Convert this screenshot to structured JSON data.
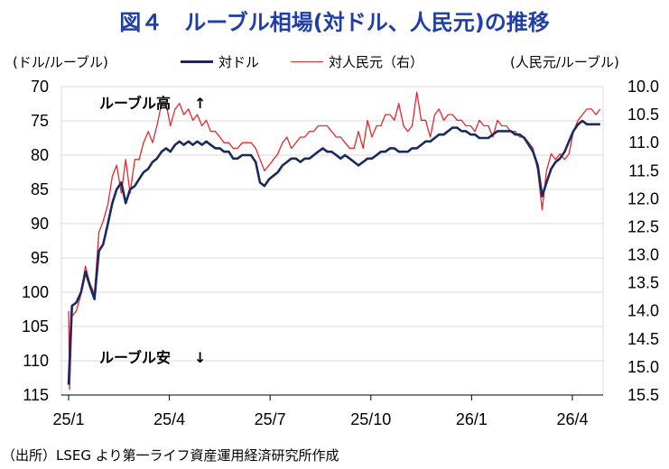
{
  "title": "図４　ルーブル相場(対ドル、人民元)の推移",
  "source": "（出所）LSEG より第一ライフ資産運用経済研究所作成",
  "chart_data": {
    "type": "line",
    "left_unit": "(ドル/ルーブル)",
    "right_unit": "(人民元/ルーブル)",
    "x_tick_labels": [
      "25/1",
      "25/4",
      "25/7",
      "25/10",
      "26/1",
      "26/4"
    ],
    "y_left": {
      "min": 70,
      "max": 115,
      "inverted": true,
      "ticks": [
        70,
        75,
        80,
        85,
        90,
        95,
        100,
        105,
        110,
        115
      ]
    },
    "y_right": {
      "min": 10.0,
      "max": 15.5,
      "inverted": true,
      "ticks": [
        "10.0",
        "10.5",
        "11.0",
        "11.5",
        "12.0",
        "12.5",
        "13.0",
        "13.5",
        "14.0",
        "14.5",
        "15.0",
        "15.5"
      ]
    },
    "annotations": {
      "high": "ルーブル高",
      "low": "ルーブル安"
    },
    "gridlines": "horizontal",
    "legend_position": "top",
    "series": [
      {
        "name": "対ドル",
        "axis": "left",
        "color": "#1a2a5e",
        "t": [
          0,
          0.03,
          0.1,
          0.23,
          0.37,
          0.5,
          0.63,
          0.77,
          0.9,
          1.03,
          1.17,
          1.3,
          1.43,
          1.57,
          1.7,
          1.83,
          1.97,
          2.1,
          2.23,
          2.37,
          2.5,
          2.63,
          2.77,
          2.9,
          3.03,
          3.17,
          3.3,
          3.43,
          3.57,
          3.7,
          3.83,
          3.97,
          4.1,
          4.23,
          4.37,
          4.5,
          4.63,
          4.77,
          4.9,
          5.03,
          5.17,
          5.3,
          5.43,
          5.57,
          5.7,
          5.83,
          5.97,
          6.1,
          6.23,
          6.37,
          6.5,
          6.63,
          6.77,
          6.9,
          7.03,
          7.17,
          7.3,
          7.43,
          7.57,
          7.7,
          7.83,
          7.97,
          8.1,
          8.23,
          8.37,
          8.5,
          8.63,
          8.77,
          8.9,
          9.03,
          9.17,
          9.3,
          9.43,
          9.57,
          9.7,
          9.83,
          9.97,
          10.1,
          10.23,
          10.37,
          10.5,
          10.63,
          10.77,
          10.9,
          11.03,
          11.17,
          11.3,
          11.43,
          11.57,
          11.7,
          11.83,
          11.97,
          12.1,
          12.23,
          12.37,
          12.5,
          12.63,
          12.77,
          12.9,
          13.03,
          13.17,
          13.3,
          13.43,
          13.57,
          13.7,
          13.83,
          13.97,
          14.1,
          14.23,
          14.37,
          14.5,
          14.63,
          14.77,
          14.9,
          15.03,
          15.17,
          15.3,
          15.43,
          15.57,
          15.7,
          15.83
        ],
        "values": [
          113.5,
          110.0,
          102.0,
          101.5,
          100.0,
          97.0,
          99.0,
          101.0,
          94.0,
          93.0,
          90.0,
          87.0,
          85.0,
          84.0,
          87.0,
          85.0,
          84.5,
          83.5,
          82.5,
          82.0,
          81.0,
          80.5,
          79.5,
          79.0,
          79.5,
          78.5,
          78.0,
          78.5,
          78.0,
          78.5,
          78.0,
          78.5,
          78.0,
          78.5,
          79.0,
          79.0,
          79.5,
          79.5,
          80.5,
          80.5,
          80.0,
          80.0,
          80.0,
          81.0,
          84.0,
          84.5,
          83.5,
          83.0,
          82.5,
          81.5,
          81.0,
          80.5,
          80.5,
          81.0,
          80.5,
          80.5,
          80.0,
          79.5,
          79.0,
          79.5,
          79.5,
          80.0,
          80.5,
          80.0,
          80.5,
          81.0,
          81.5,
          81.0,
          80.5,
          80.5,
          80.0,
          79.5,
          79.5,
          79.0,
          79.0,
          79.5,
          79.5,
          79.5,
          79.0,
          79.0,
          78.5,
          78.0,
          78.0,
          77.5,
          77.0,
          77.0,
          76.5,
          76.0,
          76.0,
          76.5,
          76.5,
          77.0,
          77.0,
          77.5,
          77.5,
          77.5,
          77.0,
          76.5,
          76.5,
          76.5,
          76.5,
          77.0,
          77.0,
          77.5,
          78.5,
          79.5,
          81.5,
          86.0,
          84.0,
          82.0,
          81.0,
          80.5,
          79.5,
          78.0,
          76.5,
          75.5,
          75.0,
          75.5,
          75.5,
          75.5,
          75.5
        ]
      },
      {
        "name": "対人民元（右）",
        "axis": "right",
        "color": "#e8262d",
        "t": [
          0,
          0.03,
          0.1,
          0.23,
          0.37,
          0.5,
          0.63,
          0.77,
          0.9,
          1.03,
          1.17,
          1.3,
          1.43,
          1.57,
          1.7,
          1.83,
          1.97,
          2.1,
          2.23,
          2.37,
          2.5,
          2.63,
          2.77,
          2.9,
          3.03,
          3.17,
          3.3,
          3.43,
          3.57,
          3.7,
          3.83,
          3.97,
          4.1,
          4.23,
          4.37,
          4.5,
          4.63,
          4.77,
          4.9,
          5.03,
          5.17,
          5.3,
          5.43,
          5.57,
          5.7,
          5.83,
          5.97,
          6.1,
          6.23,
          6.37,
          6.5,
          6.63,
          6.77,
          6.9,
          7.03,
          7.17,
          7.3,
          7.43,
          7.57,
          7.7,
          7.83,
          7.97,
          8.1,
          8.23,
          8.37,
          8.5,
          8.63,
          8.77,
          8.9,
          9.03,
          9.17,
          9.3,
          9.43,
          9.57,
          9.7,
          9.83,
          9.97,
          10.1,
          10.23,
          10.37,
          10.5,
          10.63,
          10.77,
          10.9,
          11.03,
          11.17,
          11.3,
          11.43,
          11.57,
          11.7,
          11.83,
          11.97,
          12.1,
          12.23,
          12.37,
          12.5,
          12.63,
          12.77,
          12.9,
          13.03,
          13.17,
          13.3,
          13.43,
          13.57,
          13.7,
          13.83,
          13.97,
          14.1,
          14.23,
          14.37,
          14.5,
          14.63,
          14.77,
          14.9,
          15.03,
          15.17,
          15.3,
          15.43,
          15.57,
          15.7,
          15.83
        ],
        "values": [
          14.0,
          15.4,
          14.1,
          14.0,
          13.7,
          13.2,
          13.5,
          13.7,
          12.6,
          12.4,
          12.1,
          11.6,
          11.4,
          11.9,
          11.3,
          11.9,
          11.3,
          11.3,
          11.0,
          10.8,
          11.0,
          10.7,
          10.3,
          10.3,
          10.7,
          10.4,
          10.3,
          10.5,
          10.4,
          10.6,
          10.5,
          10.7,
          10.6,
          10.8,
          10.8,
          10.9,
          11.0,
          11.0,
          11.1,
          11.1,
          11.0,
          11.0,
          11.0,
          11.1,
          11.3,
          11.5,
          11.4,
          11.3,
          11.2,
          11.0,
          10.9,
          11.1,
          11.0,
          10.9,
          10.9,
          10.8,
          10.8,
          10.7,
          10.7,
          10.7,
          10.8,
          10.9,
          10.9,
          11.0,
          11.1,
          11.1,
          10.8,
          11.1,
          10.6,
          10.9,
          10.7,
          10.7,
          10.5,
          10.5,
          10.6,
          10.3,
          10.7,
          10.8,
          10.7,
          10.1,
          10.6,
          10.6,
          10.9,
          10.5,
          10.4,
          10.6,
          10.5,
          10.5,
          10.6,
          10.6,
          10.7,
          10.7,
          10.8,
          10.6,
          10.7,
          10.7,
          10.9,
          10.6,
          10.7,
          10.7,
          10.8,
          10.8,
          10.9,
          10.9,
          11.0,
          11.1,
          11.5,
          12.2,
          11.5,
          11.2,
          11.3,
          11.2,
          11.3,
          11.2,
          10.8,
          10.6,
          10.5,
          10.4,
          10.4,
          10.5,
          10.4
        ]
      }
    ]
  }
}
